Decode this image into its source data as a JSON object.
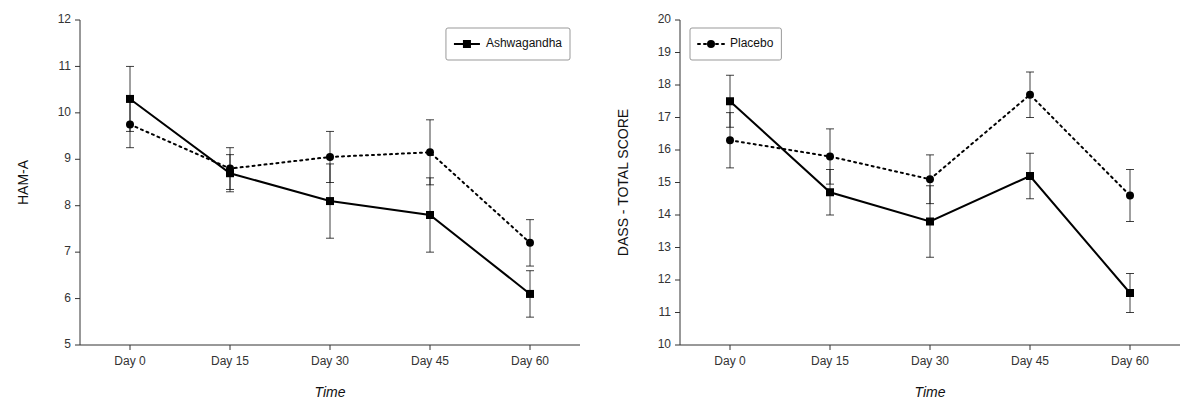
{
  "chart_data": [
    {
      "type": "line",
      "xlabel": "Time",
      "ylabel": "HAM-A",
      "categories": [
        "Day 0",
        "Day 15",
        "Day 30",
        "Day 45",
        "Day 60"
      ],
      "ylim": [
        5,
        12
      ],
      "yticks": [
        5,
        6,
        7,
        8,
        9,
        10,
        11,
        12
      ],
      "grid": false,
      "legend": "top-right",
      "series": [
        {
          "name": "Ashwagandha",
          "color": "#000000",
          "line_style": "solid",
          "marker": "square",
          "values": [
            10.3,
            8.7,
            8.1,
            7.8,
            6.1
          ],
          "errors": [
            0.7,
            0.4,
            0.8,
            0.8,
            0.5
          ]
        },
        {
          "color": "#000000",
          "line_style": "dotted",
          "marker": "circle",
          "values": [
            9.75,
            8.8,
            9.05,
            9.15,
            7.2
          ],
          "errors": [
            0.5,
            0.45,
            0.55,
            0.7,
            0.5
          ]
        }
      ]
    },
    {
      "type": "line",
      "xlabel": "Time",
      "ylabel": "DASS - TOTAL SCORE",
      "categories": [
        "Day 0",
        "Day 15",
        "Day 30",
        "Day 45",
        "Day 60"
      ],
      "ylim": [
        10,
        20
      ],
      "yticks": [
        10,
        11,
        12,
        13,
        14,
        15,
        16,
        17,
        18,
        19,
        20
      ],
      "grid": false,
      "legend": "top-left",
      "series": [
        {
          "color": "#000000",
          "line_style": "solid",
          "marker": "square",
          "values": [
            17.5,
            14.7,
            13.8,
            15.2,
            11.6
          ],
          "errors": [
            0.8,
            0.7,
            1.1,
            0.7,
            0.6
          ]
        },
        {
          "name": "Placebo",
          "color": "#000000",
          "line_style": "dotted",
          "marker": "circle",
          "values": [
            16.3,
            15.8,
            15.1,
            17.7,
            14.6
          ],
          "errors": [
            0.85,
            0.85,
            0.75,
            0.7,
            0.8
          ]
        }
      ]
    }
  ]
}
